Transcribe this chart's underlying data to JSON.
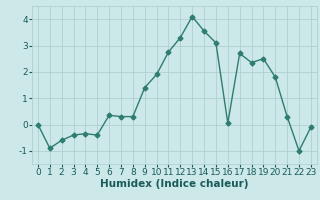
{
  "xlabel": "Humidex (Indice chaleur)",
  "x": [
    0,
    1,
    2,
    3,
    4,
    5,
    6,
    7,
    8,
    9,
    10,
    11,
    12,
    13,
    14,
    15,
    16,
    17,
    18,
    19,
    20,
    21,
    22,
    23
  ],
  "y": [
    0.0,
    -0.9,
    -0.6,
    -0.4,
    -0.35,
    -0.4,
    0.35,
    0.3,
    0.3,
    1.4,
    1.9,
    2.75,
    3.3,
    4.1,
    3.55,
    3.1,
    0.05,
    2.7,
    2.35,
    2.5,
    1.8,
    0.3,
    -1.0,
    -0.1
  ],
  "line_color": "#2e7d6e",
  "marker": "D",
  "marker_size": 2.5,
  "line_width": 1.0,
  "bg_color": "#cce8e8",
  "grid_color": "#b0d0d0",
  "ylim": [
    -1.5,
    4.5
  ],
  "xlim": [
    -0.5,
    23.5
  ],
  "yticks": [
    -1,
    0,
    1,
    2,
    3,
    4
  ],
  "xticks": [
    0,
    1,
    2,
    3,
    4,
    5,
    6,
    7,
    8,
    9,
    10,
    11,
    12,
    13,
    14,
    15,
    16,
    17,
    18,
    19,
    20,
    21,
    22,
    23
  ],
  "tick_fontsize": 6.5,
  "xlabel_fontsize": 7.5,
  "text_color": "#1a5a5a"
}
